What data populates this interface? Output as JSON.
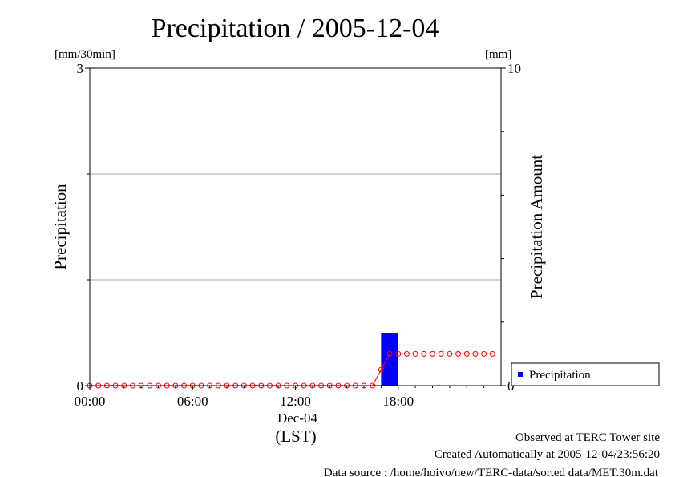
{
  "chart_data": {
    "type": "bar",
    "title": "Precipitation / 2005-12-04",
    "left_axis": {
      "label": "Precipitation",
      "unit": "[mm/30min]",
      "ylim": [
        0,
        3
      ],
      "ticks": [
        "0",
        "3"
      ]
    },
    "right_axis": {
      "label": "Precipitation Amount",
      "unit": "[mm]",
      "ylim": [
        0,
        10
      ],
      "ticks": [
        "0",
        "10"
      ]
    },
    "x_axis": {
      "label": "(LST)",
      "date_label": "Dec-04",
      "range_hours": [
        0,
        24
      ],
      "ticks": [
        "00:00",
        "06:00",
        "12:00",
        "18:00"
      ]
    },
    "grid": true,
    "legend": {
      "placement": "right-below",
      "entries": [
        "Precipitation"
      ]
    },
    "series": [
      {
        "name": "Precipitation",
        "type": "bar",
        "axis": "left",
        "color": "#0000ff",
        "bars": [
          {
            "start_hour": 17.0,
            "end_hour": 18.0,
            "value": 0.5
          }
        ]
      },
      {
        "type": "line",
        "axis": "right",
        "color": "#ff0000",
        "x_start_hour": 0.0,
        "x_step_hour": 0.5,
        "values": [
          0,
          0,
          0,
          0,
          0,
          0,
          0,
          0,
          0,
          0,
          0,
          0,
          0,
          0,
          0,
          0,
          0,
          0,
          0,
          0,
          0,
          0,
          0,
          0,
          0,
          0,
          0,
          0,
          0,
          0,
          0,
          0,
          0,
          0,
          0.5,
          1.0,
          1.0,
          1.0,
          1.0,
          1.0,
          1.0,
          1.0,
          1.0,
          1.0,
          1.0,
          1.0,
          1.0,
          1.0
        ]
      }
    ]
  },
  "footer": {
    "observed": "Observed at TERC Tower site",
    "created": "Created Automatically at 2005-12-04/23:56:20",
    "source": "Data source : /home/hoivo/new/TERC-data/sorted  data/MET.30m.dat"
  }
}
